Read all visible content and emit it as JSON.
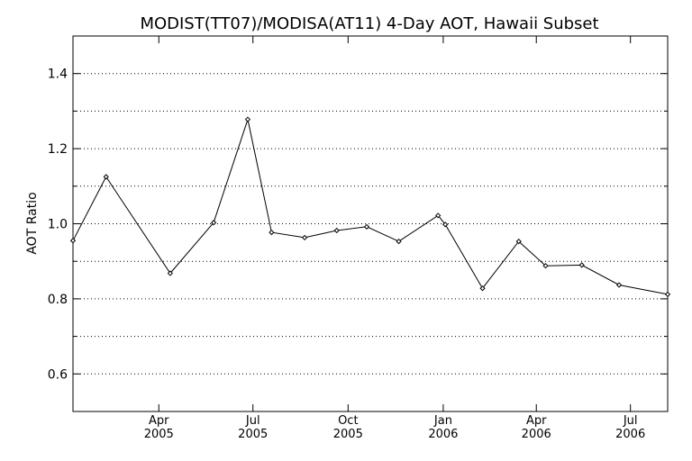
{
  "chart_data": {
    "type": "line",
    "title": "MODIST(TT07)/MODISA(AT11) 4-Day AOT, Hawaii Subset",
    "xlabel": "",
    "ylabel": "AOT Ratio",
    "xlim": [
      "2005-01-08",
      "2006-08-06"
    ],
    "ylim": [
      0.5,
      1.5
    ],
    "yticks": [
      0.6,
      0.8,
      1.0,
      1.2,
      1.4
    ],
    "ytick_labels": [
      "0.6",
      "0.8",
      "1.0",
      "1.2",
      "1.4"
    ],
    "ygrid": [
      0.6,
      0.7,
      0.8,
      0.9,
      1.0,
      1.1,
      1.2,
      1.3,
      1.4
    ],
    "grid": "horizontal dotted",
    "xticks": [
      {
        "date": "2005-04-01",
        "month": "Apr",
        "year": "2005"
      },
      {
        "date": "2005-07-01",
        "month": "Jul",
        "year": "2005"
      },
      {
        "date": "2005-10-01",
        "month": "Oct",
        "year": "2005"
      },
      {
        "date": "2006-01-01",
        "month": "Jan",
        "year": "2006"
      },
      {
        "date": "2006-04-01",
        "month": "Apr",
        "year": "2006"
      },
      {
        "date": "2006-07-01",
        "month": "Jul",
        "year": "2006"
      }
    ],
    "series": [
      {
        "color": "#000000",
        "marker": "diamond",
        "points": [
          {
            "x": "2005-01-08",
            "y": 0.955
          },
          {
            "x": "2005-02-09",
            "y": 1.125
          },
          {
            "x": "2005-04-12",
            "y": 0.868
          },
          {
            "x": "2005-05-24",
            "y": 1.003
          },
          {
            "x": "2005-06-26",
            "y": 1.278
          },
          {
            "x": "2005-07-19",
            "y": 0.977
          },
          {
            "x": "2005-08-20",
            "y": 0.963
          },
          {
            "x": "2005-09-20",
            "y": 0.982
          },
          {
            "x": "2005-10-19",
            "y": 0.992
          },
          {
            "x": "2005-11-19",
            "y": 0.953
          },
          {
            "x": "2005-12-27",
            "y": 1.022
          },
          {
            "x": "2006-01-03",
            "y": 0.998
          },
          {
            "x": "2006-02-08",
            "y": 0.828
          },
          {
            "x": "2006-03-15",
            "y": 0.953
          },
          {
            "x": "2006-04-10",
            "y": 0.888
          },
          {
            "x": "2006-05-15",
            "y": 0.89
          },
          {
            "x": "2006-06-20",
            "y": 0.837
          },
          {
            "x": "2006-08-06",
            "y": 0.812
          }
        ]
      }
    ]
  }
}
